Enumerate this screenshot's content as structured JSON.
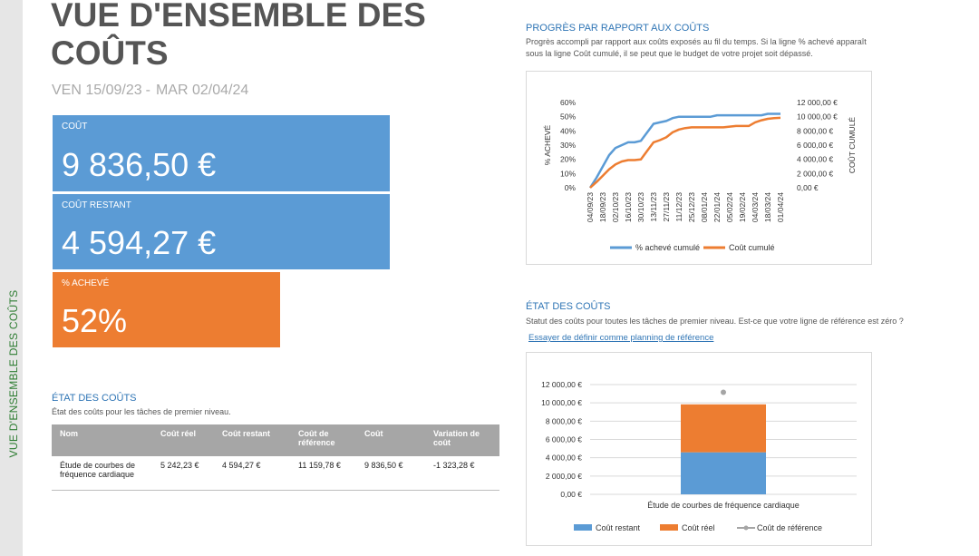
{
  "sidebar": {
    "label": "VUE D'ENSEMBLE DES COÛTS"
  },
  "header": {
    "title": "VUE D'ENSEMBLE DES COÛTS",
    "start_date": "VEN 15/09/23",
    "separator": "-",
    "end_date": "MAR 02/04/24"
  },
  "tiles": {
    "cost": {
      "label": "COÛT",
      "value": "9 836,50 €",
      "color": "#5b9bd5"
    },
    "remaining": {
      "label": "COÛT RESTANT",
      "value": "4 594,27 €",
      "color": "#5b9bd5"
    },
    "percent": {
      "label": "% ACHEVÉ",
      "value": "52%",
      "color": "#ed7d31"
    }
  },
  "cost_status_left": {
    "title": "ÉTAT DES COÛTS",
    "description": "État des coûts pour les tâches de premier niveau.",
    "columns": [
      "Nom",
      "Coût réel",
      "Coût restant",
      "Coût de référence",
      "Coût",
      "Variation de coût"
    ],
    "rows": [
      [
        "Étude de courbes de fréquence cardiaque",
        "5 242,23 €",
        "4 594,27 €",
        "11 159,78 €",
        "9 836,50 €",
        "-1 323,28 €"
      ]
    ]
  },
  "progress_section": {
    "title": "PROGRÈS PAR RAPPORT AUX COÛTS",
    "description_line1": "Progrès accompli par rapport aux coûts exposés au fil du temps. Si la ligne % achevé apparaît",
    "description_line2": "sous la ligne Coût cumulé, il se peut que le budget de votre projet soit dépassé."
  },
  "status_section": {
    "title": "ÉTAT DES COÛTS",
    "description": "Statut des coûts pour toutes les tâches de premier niveau. Est-ce que votre ligne de référence est zéro ?",
    "link": "Essayer de définir comme planning de référence"
  },
  "chart_data": [
    {
      "type": "line",
      "x": [
        "04/09/23",
        "11/09/23",
        "18/09/23",
        "25/09/23",
        "02/10/23",
        "09/10/23",
        "16/10/23",
        "23/10/23",
        "30/10/23",
        "06/11/23",
        "13/11/23",
        "20/11/23",
        "27/11/23",
        "04/12/23",
        "11/12/23",
        "18/12/23",
        "25/12/23",
        "01/01/24",
        "08/01/24",
        "15/01/24",
        "22/01/24",
        "29/01/24",
        "05/02/24",
        "12/02/24",
        "19/02/24",
        "26/02/24",
        "04/03/24",
        "11/03/24",
        "18/03/24",
        "25/03/24",
        "01/04/24"
      ],
      "x_tick_labels": [
        "04/09/23",
        "18/09/23",
        "02/10/23",
        "16/10/23",
        "30/10/23",
        "13/11/23",
        "27/11/23",
        "11/12/23",
        "25/12/23",
        "08/01/24",
        "22/01/24",
        "05/02/24",
        "19/02/24",
        "04/03/24",
        "18/03/24",
        "01/04/24"
      ],
      "series": [
        {
          "name": "% achevé cumulé",
          "axis": "left",
          "color": "#5b9bd5",
          "values": [
            0,
            7,
            15,
            23,
            28,
            30,
            32,
            32,
            33,
            39,
            45,
            46,
            47,
            49,
            50,
            50,
            50,
            50,
            50,
            50,
            51,
            51,
            51,
            51,
            51,
            51,
            51,
            51,
            52,
            52,
            52
          ]
        },
        {
          "name": "Coût cumulé",
          "axis": "right",
          "color": "#ed7d31",
          "values": [
            0,
            800,
            1700,
            2600,
            3300,
            3700,
            3900,
            3900,
            4000,
            5200,
            6400,
            6700,
            7100,
            7800,
            8200,
            8400,
            8500,
            8500,
            8500,
            8500,
            8500,
            8500,
            8600,
            8700,
            8700,
            8700,
            9200,
            9500,
            9700,
            9800,
            9836.5
          ]
        }
      ],
      "ylabel": "% ACHEVÉ",
      "y2label": "COÛT CUMULÉ",
      "ylim": [
        0,
        60
      ],
      "y_ticks": [
        "0%",
        "10%",
        "20%",
        "30%",
        "40%",
        "50%",
        "60%"
      ],
      "y2lim": [
        0,
        12000
      ],
      "y2_ticks": [
        "0,00 €",
        "2 000,00 €",
        "4 000,00 €",
        "6 000,00 €",
        "8 000,00 €",
        "10 000,00 €",
        "12 000,00 €"
      ],
      "legend": "bottom"
    },
    {
      "type": "bar",
      "stacked": true,
      "categories": [
        "Étude de courbes de fréquence cardiaque"
      ],
      "series": [
        {
          "name": "Coût restant",
          "color": "#5b9bd5",
          "values": [
            4594.27
          ]
        },
        {
          "name": "Coût réel",
          "color": "#ed7d31",
          "values": [
            5242.23
          ]
        },
        {
          "name": "Coût de référence",
          "color": "#a5a5a5",
          "kind": "marker",
          "values": [
            11159.78
          ]
        }
      ],
      "ylim": [
        0,
        12000
      ],
      "y_ticks": [
        "0,00 €",
        "2 000,00 €",
        "4 000,00 €",
        "6 000,00 €",
        "8 000,00 €",
        "10 000,00 €",
        "12 000,00 €"
      ],
      "grid": true,
      "legend": "bottom"
    }
  ]
}
